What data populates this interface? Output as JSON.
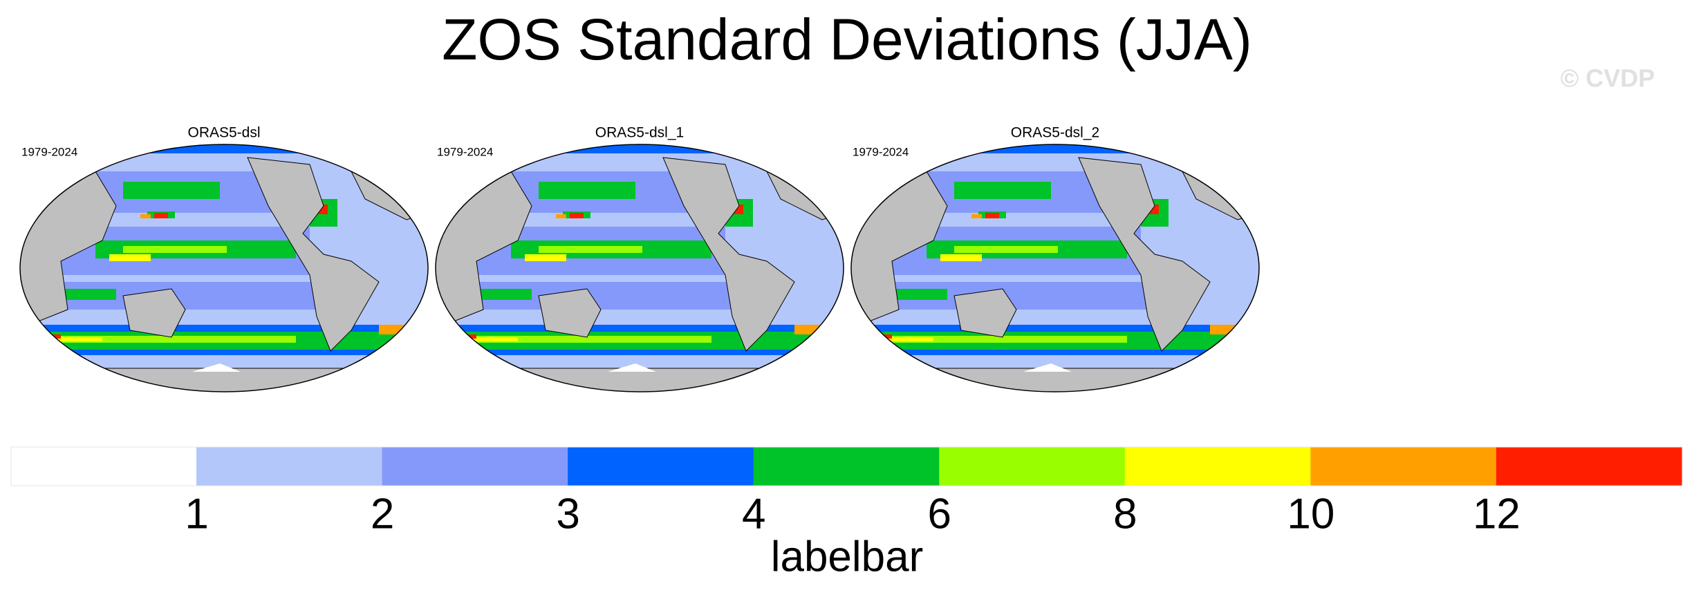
{
  "header": {
    "title": "ZOS Standard Deviations (JJA)",
    "watermark": "© CVDP"
  },
  "panels": [
    {
      "period": "1979-2024",
      "name": "ORAS5-dsl"
    },
    {
      "period": "1979-2024",
      "name": "ORAS5-dsl_1"
    },
    {
      "period": "1979-2024",
      "name": "ORAS5-dsl_2"
    }
  ],
  "labelbar": {
    "title": "labelbar",
    "colors": [
      "#ffffff",
      "#b4c7fb",
      "#8599fb",
      "#0062ff",
      "#00c32a",
      "#99ff00",
      "#ffff00",
      "#ffa000",
      "#ff1f00"
    ],
    "labels": [
      1,
      2,
      3,
      4,
      6,
      8,
      10,
      12
    ]
  }
}
